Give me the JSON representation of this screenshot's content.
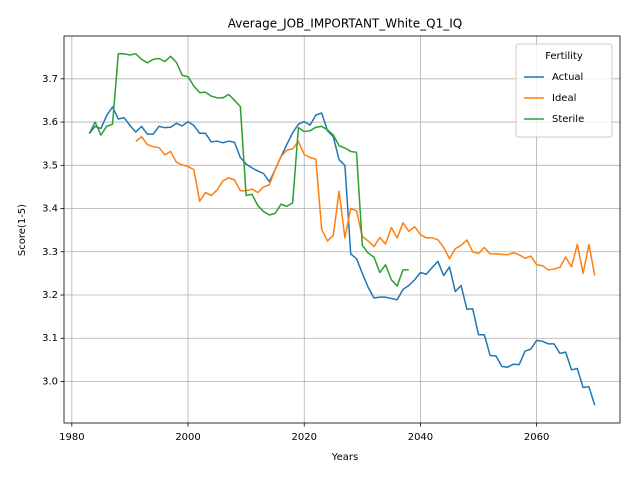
{
  "chart_data": {
    "type": "line",
    "title": "Average_JOB_IMPORTANT_White_Q1_IQ",
    "x_label": "Years",
    "y_label": "Score(1-5)",
    "legend_title": "Fertility",
    "legend": "upper right",
    "grid": true,
    "x": [
      1983,
      1984,
      1985,
      1986,
      1987,
      1988,
      1989,
      1990,
      1991,
      1992,
      1993,
      1994,
      1995,
      1996,
      1997,
      1998,
      1999,
      2000,
      2001,
      2002,
      2003,
      2004,
      2005,
      2006,
      2007,
      2008,
      2009,
      2010,
      2011,
      2012,
      2013,
      2014,
      2015,
      2016,
      2017,
      2018,
      2019,
      2020,
      2021,
      2022,
      2023,
      2024,
      2025,
      2026,
      2027,
      2028,
      2029,
      2030,
      2031,
      2032,
      2033,
      2034,
      2035,
      2036,
      2037,
      2038,
      2039,
      2040,
      2041,
      2042,
      2043,
      2044,
      2045,
      2046,
      2047,
      2048,
      2049,
      2050,
      2051,
      2052,
      2053,
      2054,
      2055,
      2056,
      2057,
      2058,
      2059,
      2060,
      2061,
      2062,
      2063,
      2064,
      2065,
      2066,
      2067,
      2068,
      2069,
      2070
    ],
    "series": [
      {
        "name": "Actual",
        "color": "#1f77b4",
        "values": [
          3.573,
          3.59,
          3.585,
          3.615,
          3.635,
          3.607,
          3.61,
          3.592,
          3.577,
          3.59,
          3.572,
          3.572,
          3.59,
          3.587,
          3.588,
          3.597,
          3.591,
          3.601,
          3.592,
          3.574,
          3.574,
          3.554,
          3.556,
          3.552,
          3.556,
          3.553,
          3.518,
          3.503,
          3.494,
          3.487,
          3.481,
          3.462,
          3.49,
          3.52,
          3.548,
          3.575,
          3.595,
          3.601,
          3.593,
          3.616,
          3.621,
          3.58,
          3.566,
          3.513,
          3.5,
          3.295,
          3.284,
          3.25,
          3.218,
          3.193,
          3.195,
          3.195,
          3.192,
          3.189,
          3.213,
          3.222,
          3.235,
          3.252,
          3.248,
          3.263,
          3.278,
          3.245,
          3.265,
          3.208,
          3.222,
          3.167,
          3.168,
          3.108,
          3.108,
          3.06,
          3.059,
          3.035,
          3.033,
          3.04,
          3.039,
          3.07,
          3.075,
          3.095,
          3.093,
          3.087,
          3.087,
          3.065,
          3.068,
          3.027,
          3.03,
          2.986,
          2.988,
          2.945
        ]
      },
      {
        "name": "Ideal",
        "color": "#ff7f0e",
        "values": [
          null,
          null,
          null,
          null,
          null,
          null,
          null,
          null,
          3.555,
          3.566,
          3.548,
          3.543,
          3.541,
          3.524,
          3.532,
          3.507,
          3.501,
          3.497,
          3.49,
          3.417,
          3.437,
          3.43,
          3.443,
          3.464,
          3.471,
          3.466,
          3.441,
          3.441,
          3.445,
          3.437,
          3.45,
          3.455,
          3.49,
          3.52,
          3.535,
          3.538,
          3.555,
          3.525,
          3.518,
          3.514,
          3.352,
          3.325,
          3.338,
          3.44,
          3.332,
          3.4,
          3.395,
          3.335,
          3.325,
          3.312,
          3.333,
          3.318,
          3.356,
          3.332,
          3.367,
          3.347,
          3.358,
          3.34,
          3.332,
          3.332,
          3.328,
          3.31,
          3.284,
          3.307,
          3.315,
          3.327,
          3.3,
          3.296,
          3.31,
          3.295,
          3.295,
          3.294,
          3.293,
          3.298,
          3.293,
          3.285,
          3.29,
          3.27,
          3.268,
          3.258,
          3.26,
          3.264,
          3.288,
          3.265,
          3.317,
          3.25,
          3.317,
          3.245
        ]
      },
      {
        "name": "Sterile",
        "color": "#2ca02c",
        "values": [
          3.573,
          3.6,
          3.57,
          3.59,
          3.595,
          3.758,
          3.758,
          3.755,
          3.758,
          3.745,
          3.737,
          3.745,
          3.747,
          3.74,
          3.752,
          3.738,
          3.708,
          3.705,
          3.683,
          3.668,
          3.669,
          3.66,
          3.656,
          3.656,
          3.664,
          3.65,
          3.636,
          3.43,
          3.433,
          3.407,
          3.393,
          3.385,
          3.389,
          3.41,
          3.405,
          3.413,
          3.587,
          3.578,
          3.58,
          3.588,
          3.59,
          3.582,
          3.57,
          3.545,
          3.54,
          3.532,
          3.53,
          3.315,
          3.297,
          3.288,
          3.252,
          3.27,
          3.235,
          3.221,
          3.258,
          3.258,
          null,
          null,
          null,
          null,
          null,
          null,
          null,
          null,
          null,
          null,
          null,
          null,
          null,
          null,
          null,
          null,
          null,
          null,
          null,
          null,
          null,
          null,
          null,
          null,
          null,
          null,
          null,
          null,
          null,
          null,
          null,
          null
        ]
      }
    ],
    "xlim": [
      1978.65,
      2074.35
    ],
    "xticks": [
      1980,
      2000,
      2020,
      2040,
      2060
    ],
    "ylim": [
      2.904,
      3.799
    ],
    "yticks": [
      {
        "value": 3,
        "label": "3.0"
      },
      3.1,
      3.2,
      3.3,
      3.4,
      3.5,
      3.6,
      3.7
    ]
  }
}
